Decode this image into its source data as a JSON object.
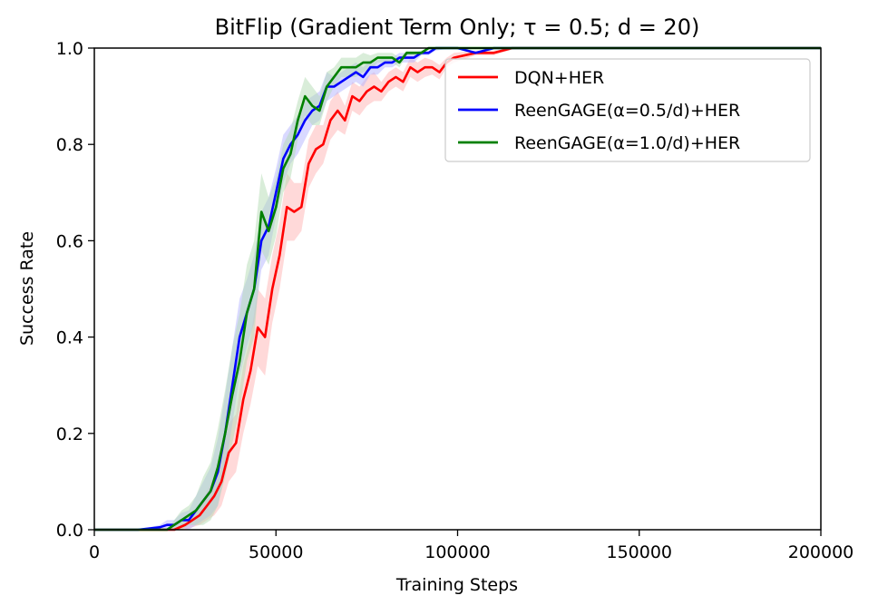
{
  "chart_data": {
    "type": "line",
    "title": "BitFlip (Gradient Term Only; τ = 0.5; d = 20)",
    "xlabel": "Training Steps",
    "ylabel": "Success Rate",
    "xlim": [
      0,
      200000
    ],
    "ylim": [
      0,
      1.0
    ],
    "xticks": [
      0,
      50000,
      100000,
      150000,
      200000
    ],
    "xtick_labels": [
      "0",
      "50000",
      "100000",
      "150000",
      "200000"
    ],
    "yticks": [
      0,
      0.2,
      0.4,
      0.6,
      0.8,
      1.0
    ],
    "ytick_labels": [
      "0.0",
      "0.2",
      "0.4",
      "0.6",
      "0.8",
      "1.0"
    ],
    "grid": false,
    "legend_position": "top-right",
    "series": [
      {
        "name": "DQN+HER",
        "color": "#ff0000",
        "shade_color": "#ffb3b3",
        "x": [
          0,
          10000,
          18000,
          22000,
          25000,
          27000,
          29000,
          31000,
          33000,
          35000,
          37000,
          39000,
          41000,
          43000,
          45000,
          47000,
          49000,
          51000,
          53000,
          55000,
          57000,
          59000,
          61000,
          63000,
          65000,
          67000,
          69000,
          71000,
          73000,
          75000,
          77000,
          79000,
          81000,
          83000,
          85000,
          87000,
          89000,
          91000,
          93000,
          95000,
          97000,
          99000,
          105000,
          110000,
          115000,
          120000,
          130000,
          140000,
          150000,
          200000
        ],
        "values": [
          0,
          0,
          0,
          0,
          0.01,
          0.02,
          0.03,
          0.05,
          0.07,
          0.1,
          0.16,
          0.18,
          0.27,
          0.33,
          0.42,
          0.4,
          0.5,
          0.57,
          0.67,
          0.66,
          0.67,
          0.76,
          0.79,
          0.8,
          0.85,
          0.87,
          0.85,
          0.9,
          0.89,
          0.91,
          0.92,
          0.91,
          0.93,
          0.94,
          0.93,
          0.96,
          0.95,
          0.96,
          0.96,
          0.95,
          0.97,
          0.98,
          0.99,
          0.99,
          1.0,
          1.0,
          1.0,
          1.0,
          1.0,
          1.0
        ],
        "band": [
          0,
          0,
          0,
          0,
          0.01,
          0.015,
          0.02,
          0.03,
          0.04,
          0.05,
          0.06,
          0.06,
          0.07,
          0.07,
          0.08,
          0.08,
          0.07,
          0.07,
          0.07,
          0.06,
          0.05,
          0.05,
          0.05,
          0.04,
          0.04,
          0.04,
          0.03,
          0.03,
          0.03,
          0.03,
          0.03,
          0.02,
          0.02,
          0.02,
          0.02,
          0.02,
          0.02,
          0.02,
          0.015,
          0.015,
          0.01,
          0.01,
          0.005,
          0.005,
          0.003,
          0.002,
          0.001,
          0.001,
          0,
          0
        ]
      },
      {
        "name": "ReenGAGE(α=0.5/d)+HER",
        "color": "#0000ff",
        "shade_color": "#b3b3ff",
        "x": [
          0,
          12000,
          18000,
          20000,
          22000,
          24000,
          26000,
          28000,
          30000,
          32000,
          34000,
          36000,
          38000,
          40000,
          42000,
          44000,
          46000,
          48000,
          50000,
          52000,
          54000,
          56000,
          58000,
          60000,
          62000,
          64000,
          66000,
          68000,
          70000,
          72000,
          74000,
          76000,
          78000,
          80000,
          82000,
          84000,
          86000,
          88000,
          90000,
          92000,
          94000,
          96000,
          100000,
          105000,
          110000,
          115000,
          120000,
          200000
        ],
        "values": [
          0,
          0,
          0.005,
          0.01,
          0.01,
          0.02,
          0.02,
          0.04,
          0.06,
          0.08,
          0.12,
          0.2,
          0.3,
          0.4,
          0.45,
          0.5,
          0.6,
          0.63,
          0.7,
          0.77,
          0.8,
          0.82,
          0.85,
          0.87,
          0.88,
          0.92,
          0.92,
          0.93,
          0.94,
          0.95,
          0.94,
          0.96,
          0.96,
          0.97,
          0.97,
          0.98,
          0.98,
          0.98,
          0.99,
          0.99,
          1.0,
          1.0,
          1.0,
          0.99,
          1.0,
          1.0,
          1.0,
          1.0
        ],
        "band": [
          0,
          0,
          0.005,
          0.01,
          0.01,
          0.015,
          0.02,
          0.03,
          0.04,
          0.05,
          0.07,
          0.08,
          0.08,
          0.08,
          0.07,
          0.07,
          0.06,
          0.06,
          0.05,
          0.05,
          0.04,
          0.04,
          0.04,
          0.03,
          0.03,
          0.03,
          0.02,
          0.02,
          0.02,
          0.02,
          0.02,
          0.015,
          0.015,
          0.01,
          0.01,
          0.01,
          0.01,
          0.01,
          0.005,
          0.005,
          0.005,
          0.003,
          0.002,
          0.002,
          0.001,
          0,
          0,
          0
        ]
      },
      {
        "name": "ReenGAGE(α=1.0/d)+HER",
        "color": "#008000",
        "shade_color": "#b3dcb3",
        "x": [
          0,
          12000,
          16000,
          20000,
          22000,
          24000,
          26000,
          28000,
          30000,
          32000,
          34000,
          36000,
          38000,
          40000,
          42000,
          44000,
          46000,
          48000,
          50000,
          52000,
          54000,
          56000,
          58000,
          60000,
          62000,
          64000,
          66000,
          68000,
          70000,
          72000,
          74000,
          76000,
          78000,
          80000,
          82000,
          84000,
          86000,
          88000,
          90000,
          92000,
          94000,
          96000,
          100000,
          110000,
          120000,
          200000
        ],
        "values": [
          0,
          0,
          0,
          0,
          0.01,
          0.02,
          0.03,
          0.04,
          0.06,
          0.08,
          0.13,
          0.2,
          0.28,
          0.35,
          0.45,
          0.5,
          0.66,
          0.62,
          0.67,
          0.75,
          0.78,
          0.85,
          0.9,
          0.88,
          0.87,
          0.92,
          0.94,
          0.96,
          0.96,
          0.96,
          0.97,
          0.97,
          0.98,
          0.98,
          0.98,
          0.97,
          0.99,
          0.99,
          0.99,
          1.0,
          1.0,
          1.0,
          1.0,
          1.0,
          1.0,
          1.0
        ],
        "band": [
          0,
          0,
          0,
          0,
          0.01,
          0.02,
          0.02,
          0.03,
          0.05,
          0.06,
          0.08,
          0.09,
          0.1,
          0.1,
          0.1,
          0.1,
          0.08,
          0.07,
          0.06,
          0.05,
          0.05,
          0.04,
          0.04,
          0.04,
          0.03,
          0.03,
          0.02,
          0.02,
          0.02,
          0.02,
          0.02,
          0.015,
          0.01,
          0.01,
          0.01,
          0.01,
          0.005,
          0.005,
          0.005,
          0.003,
          0.002,
          0.001,
          0,
          0,
          0,
          0
        ]
      }
    ]
  }
}
